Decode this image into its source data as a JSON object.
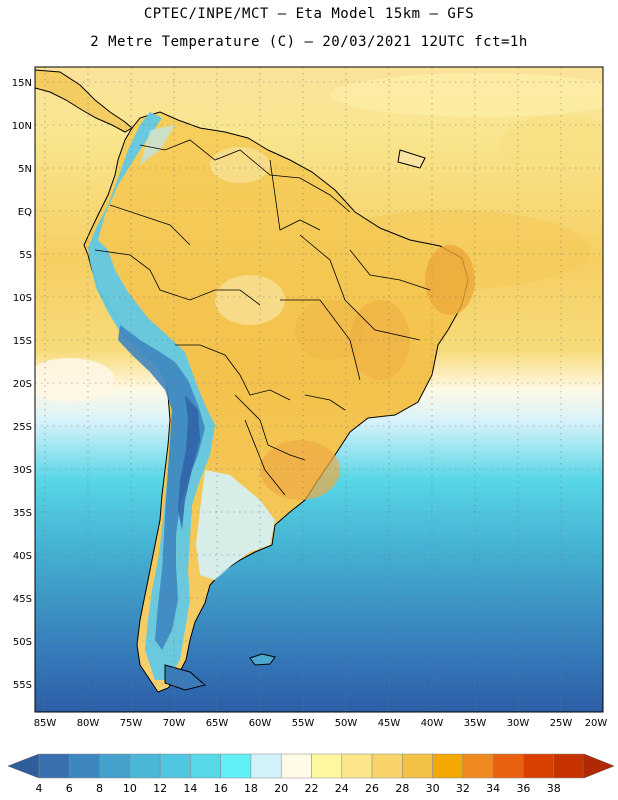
{
  "title_line1": "CPTEC/INPE/MCT –  Eta Model 15km – GFS",
  "title_line2": "2 Metre Temperature (C) – 20/03/2021 12UTC fct=1h",
  "lat_labels": [
    "15N",
    "10N",
    "5N",
    "EQ",
    "5S",
    "10S",
    "15S",
    "20S",
    "25S",
    "30S",
    "35S",
    "40S",
    "45S",
    "50S",
    "55S"
  ],
  "lon_labels": [
    "85W",
    "80W",
    "75W",
    "70W",
    "65W",
    "60W",
    "55W",
    "50W",
    "45W",
    "40W",
    "35W",
    "30W",
    "25W",
    "20W"
  ],
  "colorbar": {
    "labels": [
      "4",
      "6",
      "8",
      "10",
      "12",
      "14",
      "16",
      "18",
      "20",
      "22",
      "24",
      "26",
      "28",
      "30",
      "32",
      "34",
      "36",
      "38"
    ],
    "colors": [
      "#3a6fb0",
      "#3e86c0",
      "#45a0cc",
      "#4ab6d8",
      "#50c6e0",
      "#56d8e8",
      "#62f0f8",
      "#d2f2fa",
      "#fffbe8",
      "#fff7a0",
      "#fce58a",
      "#f8d468",
      "#f2c146",
      "#f3a800",
      "#ef8a20",
      "#e86010",
      "#d84000",
      "#c63200"
    ],
    "left_arrow_color": "#2f5e9c",
    "right_arrow_color": "#b22800"
  },
  "colors": {
    "coast_line": "#000000",
    "land_base": "#f7d874",
    "ocean_tropical": "#f7d36a",
    "ocean_south": "#2f62a8"
  }
}
